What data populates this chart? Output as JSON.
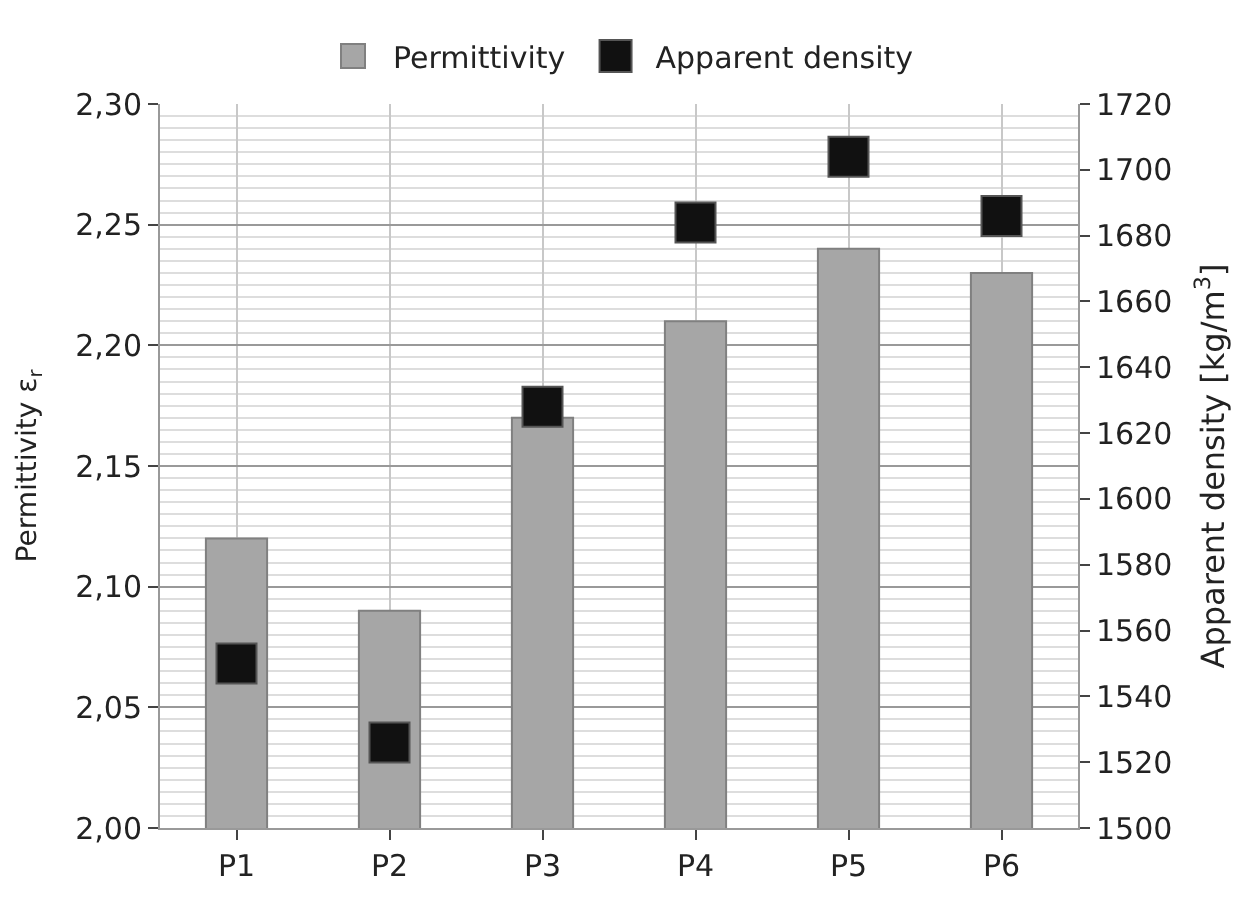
{
  "chart_data": {
    "type": "bar",
    "ylabel": "Permittivity ε$_{r}$",
    "y2label": "Apparent density [kg/m$^{3}$]",
    "categories": [
      "P1",
      "P2",
      "P3",
      "P4",
      "P5",
      "P6"
    ],
    "series": [
      {
        "name": "Permittivity",
        "color": "#a6a6a6",
        "values": [
          2.12,
          2.09,
          2.17,
          2.21,
          2.24,
          2.23
        ]
      },
      {
        "name": "Apparent density",
        "type": "scatter",
        "axis": "y2",
        "color": "#111111",
        "values": [
          1550,
          1526,
          1628,
          1684,
          1704,
          1686
        ]
      }
    ],
    "ylim": [
      2.0,
      2.3
    ],
    "yticks": [
      {
        "value": 2.0,
        "label": "2,00"
      },
      {
        "value": 2.05,
        "label": "2,05"
      },
      {
        "value": 2.1,
        "label": "2,10"
      },
      {
        "value": 2.15,
        "label": "2,15"
      },
      {
        "value": 2.2,
        "label": "2,20"
      },
      {
        "value": 2.25,
        "label": "2,25"
      },
      {
        "value": 2.3,
        "label": "2,30"
      }
    ],
    "y2lim": [
      1500,
      1720
    ],
    "y2ticks": [
      1500,
      1520,
      1540,
      1560,
      1580,
      1600,
      1620,
      1640,
      1660,
      1680,
      1700,
      1720
    ],
    "marker": "square",
    "grid": true,
    "legend": "top"
  }
}
